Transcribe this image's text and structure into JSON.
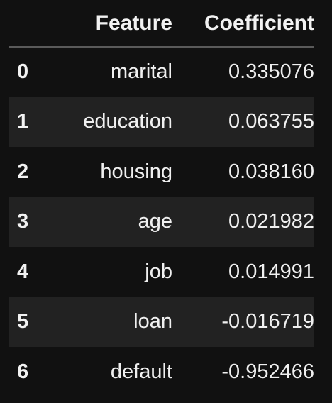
{
  "table": {
    "columns": {
      "index": "",
      "feature": "Feature",
      "coefficient": "Coefficient"
    },
    "rows": [
      {
        "index": "0",
        "feature": "marital",
        "coefficient": "0.335076"
      },
      {
        "index": "1",
        "feature": "education",
        "coefficient": "0.063755"
      },
      {
        "index": "2",
        "feature": "housing",
        "coefficient": "0.038160"
      },
      {
        "index": "3",
        "feature": "age",
        "coefficient": "0.021982"
      },
      {
        "index": "4",
        "feature": "job",
        "coefficient": "0.014991"
      },
      {
        "index": "5",
        "feature": "loan",
        "coefficient": "-0.016719"
      },
      {
        "index": "6",
        "feature": "default",
        "coefficient": "-0.952466"
      }
    ]
  },
  "colors": {
    "background": "#111111",
    "row_stripe": "#222222",
    "header_rule": "#5a5a5a",
    "text": "#f0f0f0"
  }
}
